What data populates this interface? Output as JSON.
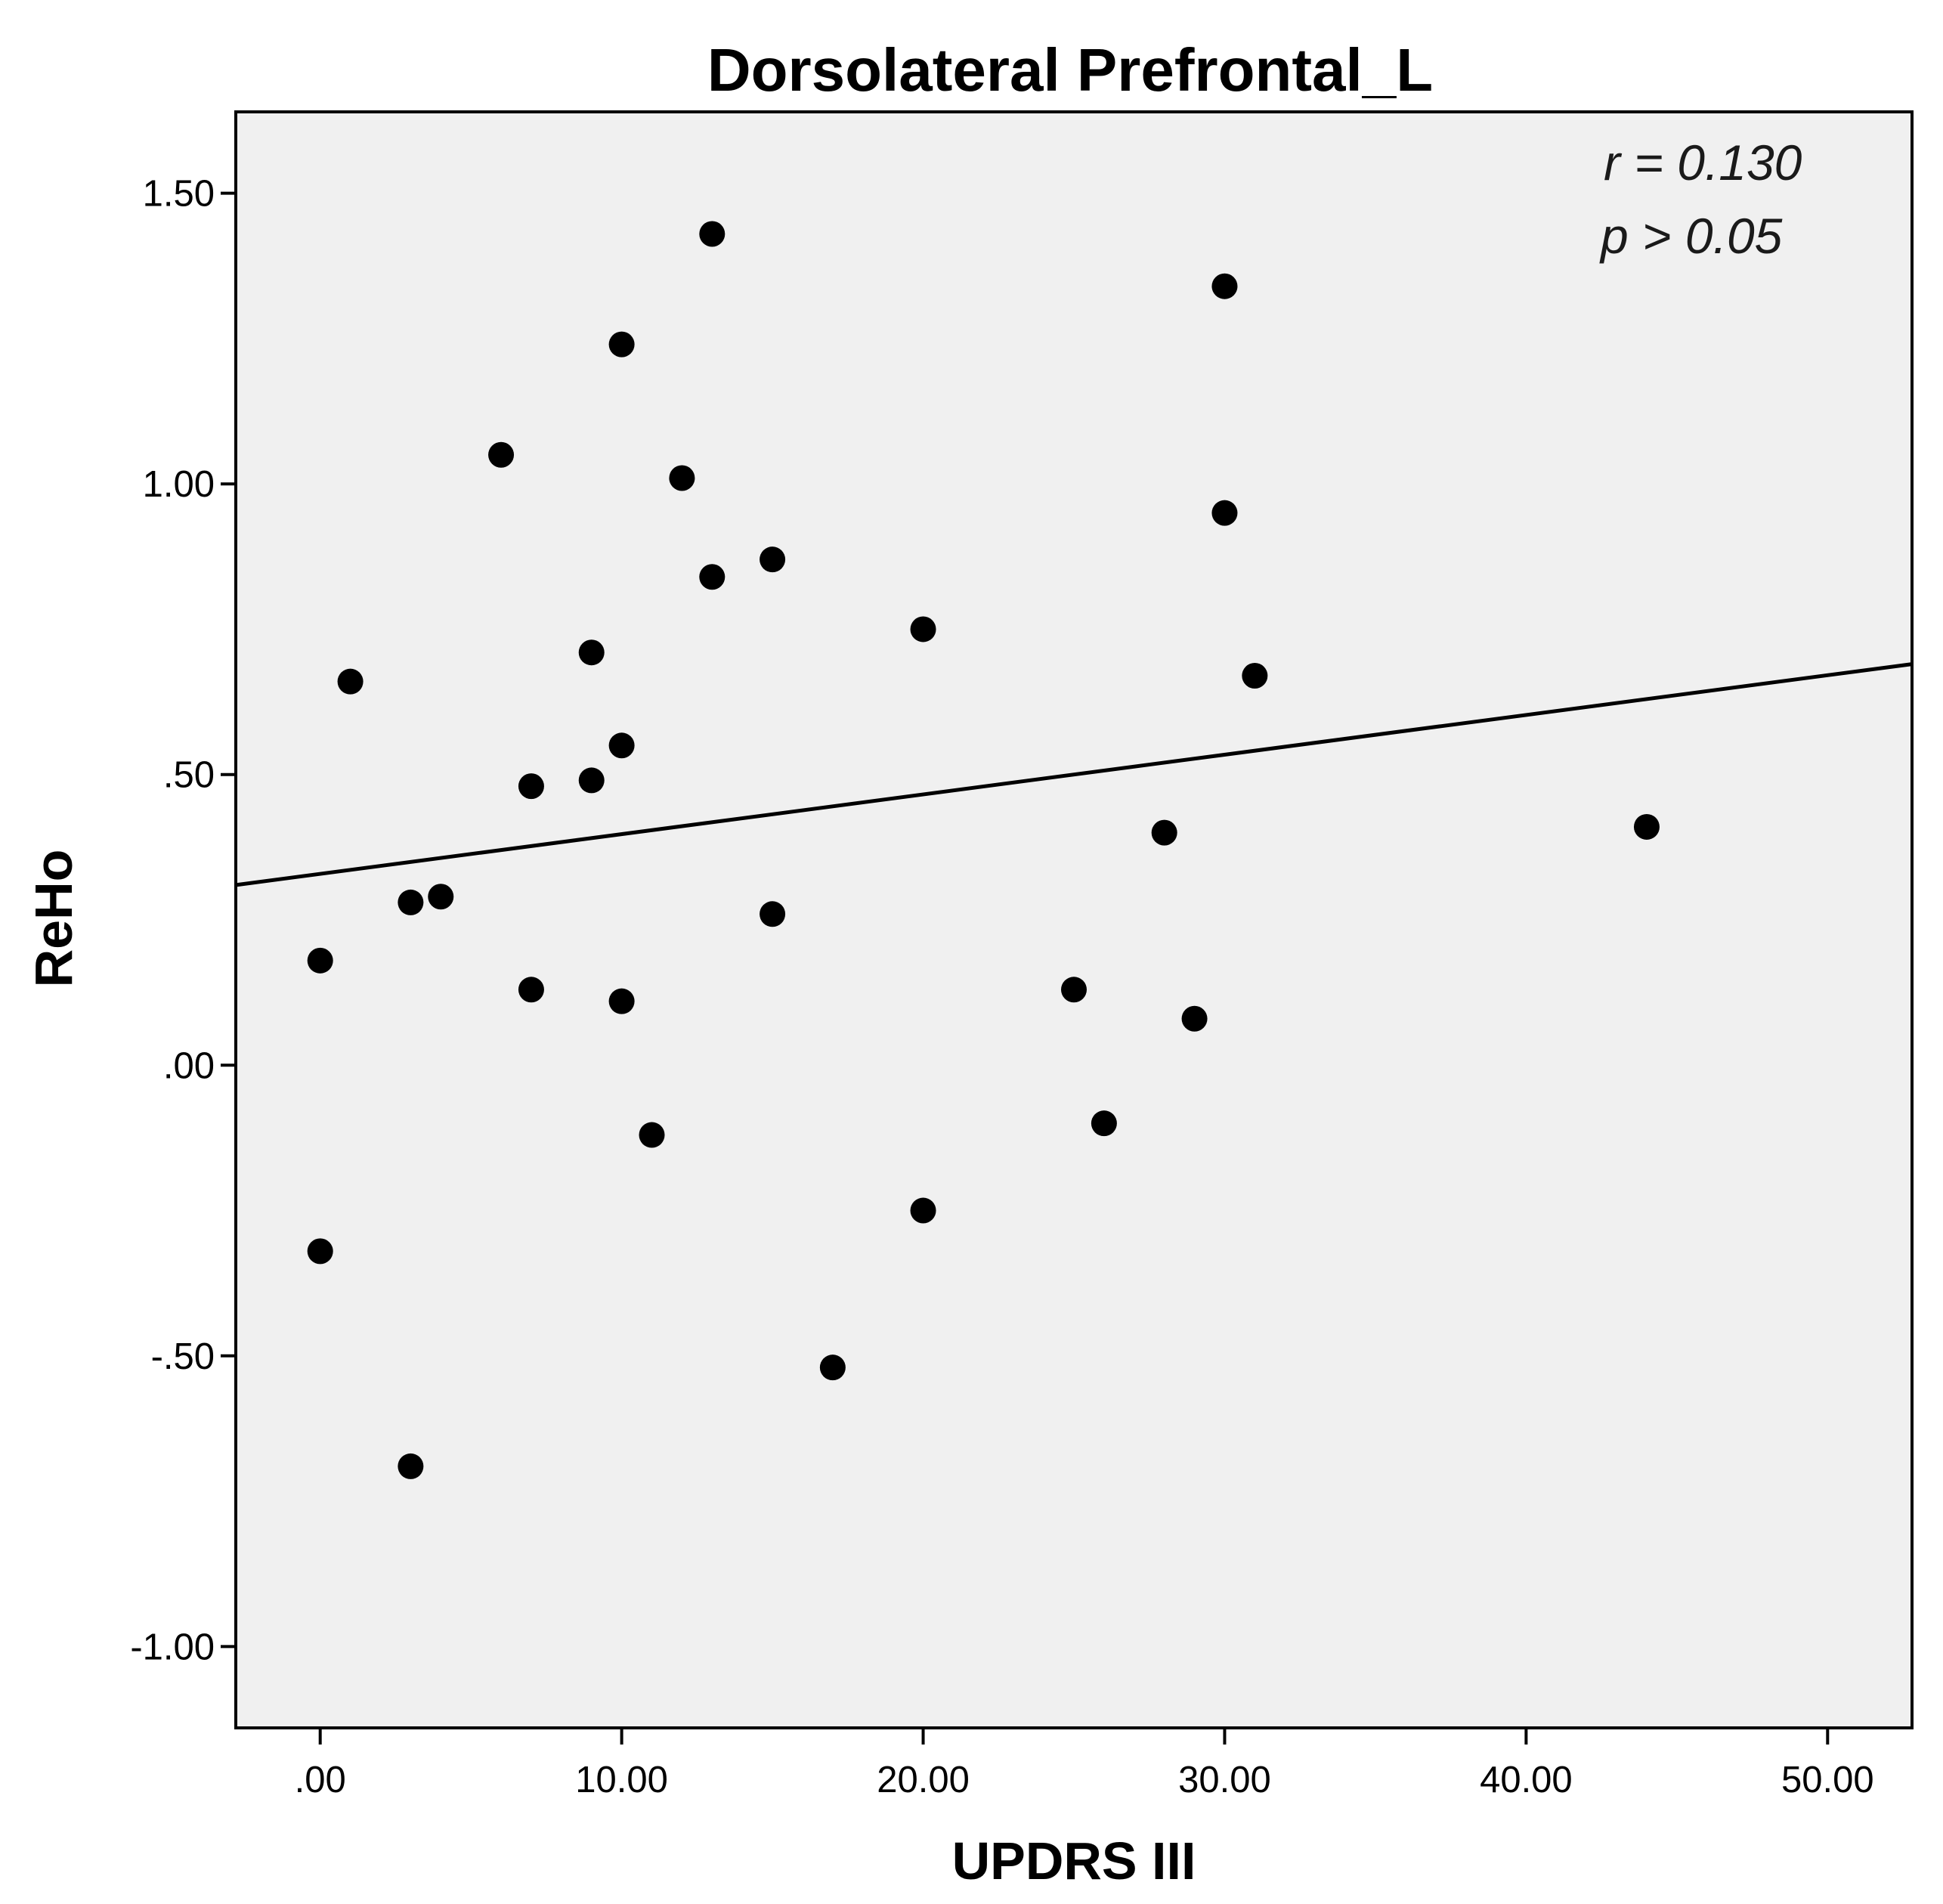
{
  "chart_data": {
    "type": "scatter",
    "title": "Dorsolateral Prefrontal_L",
    "xlabel": "UPDRS III",
    "ylabel": "ReHo",
    "xlim": [
      -2.8,
      52.8
    ],
    "ylim": [
      -1.14,
      1.64
    ],
    "x_ticks": [
      0,
      10,
      20,
      30,
      40,
      50
    ],
    "x_tick_labels": [
      ".00",
      "10.00",
      "20.00",
      "30.00",
      "40.00",
      "50.00"
    ],
    "y_ticks": [
      1.5,
      1.0,
      0.5,
      0.0,
      -0.5,
      -1.0
    ],
    "y_tick_labels": [
      "1.50",
      "1.00",
      ".50",
      ".00",
      "-.50",
      "-1.00"
    ],
    "grid": false,
    "annotations": [
      "r = 0.130",
      "p > 0.05"
    ],
    "fit_line": {
      "x": [
        -2.8,
        52.8
      ],
      "y": [
        0.31,
        0.69
      ]
    },
    "points": [
      {
        "x": 0,
        "y": 0.18
      },
      {
        "x": 0,
        "y": -0.32
      },
      {
        "x": 1,
        "y": 0.66
      },
      {
        "x": 3,
        "y": 0.28
      },
      {
        "x": 3,
        "y": -0.69
      },
      {
        "x": 4,
        "y": 0.29
      },
      {
        "x": 6,
        "y": 1.05
      },
      {
        "x": 7,
        "y": 0.48
      },
      {
        "x": 7,
        "y": 0.13
      },
      {
        "x": 9,
        "y": 0.71
      },
      {
        "x": 9,
        "y": 0.49
      },
      {
        "x": 10,
        "y": 1.24
      },
      {
        "x": 10,
        "y": 0.55
      },
      {
        "x": 10,
        "y": 0.11
      },
      {
        "x": 11,
        "y": -0.12
      },
      {
        "x": 12,
        "y": 1.01
      },
      {
        "x": 13,
        "y": 1.43
      },
      {
        "x": 13,
        "y": 0.84
      },
      {
        "x": 15,
        "y": 0.87
      },
      {
        "x": 15,
        "y": 0.26
      },
      {
        "x": 17,
        "y": -0.52
      },
      {
        "x": 20,
        "y": 0.75
      },
      {
        "x": 20,
        "y": -0.25
      },
      {
        "x": 25,
        "y": 0.13
      },
      {
        "x": 26,
        "y": -0.1
      },
      {
        "x": 28,
        "y": 0.4
      },
      {
        "x": 29,
        "y": 0.08
      },
      {
        "x": 30,
        "y": 1.34
      },
      {
        "x": 30,
        "y": 0.95
      },
      {
        "x": 31,
        "y": 0.67
      },
      {
        "x": 44,
        "y": 0.41
      }
    ]
  },
  "colors": {
    "plot_background": "#f0f0f0",
    "points": "#000000",
    "fit_line": "#000000",
    "frame": "#000000"
  }
}
